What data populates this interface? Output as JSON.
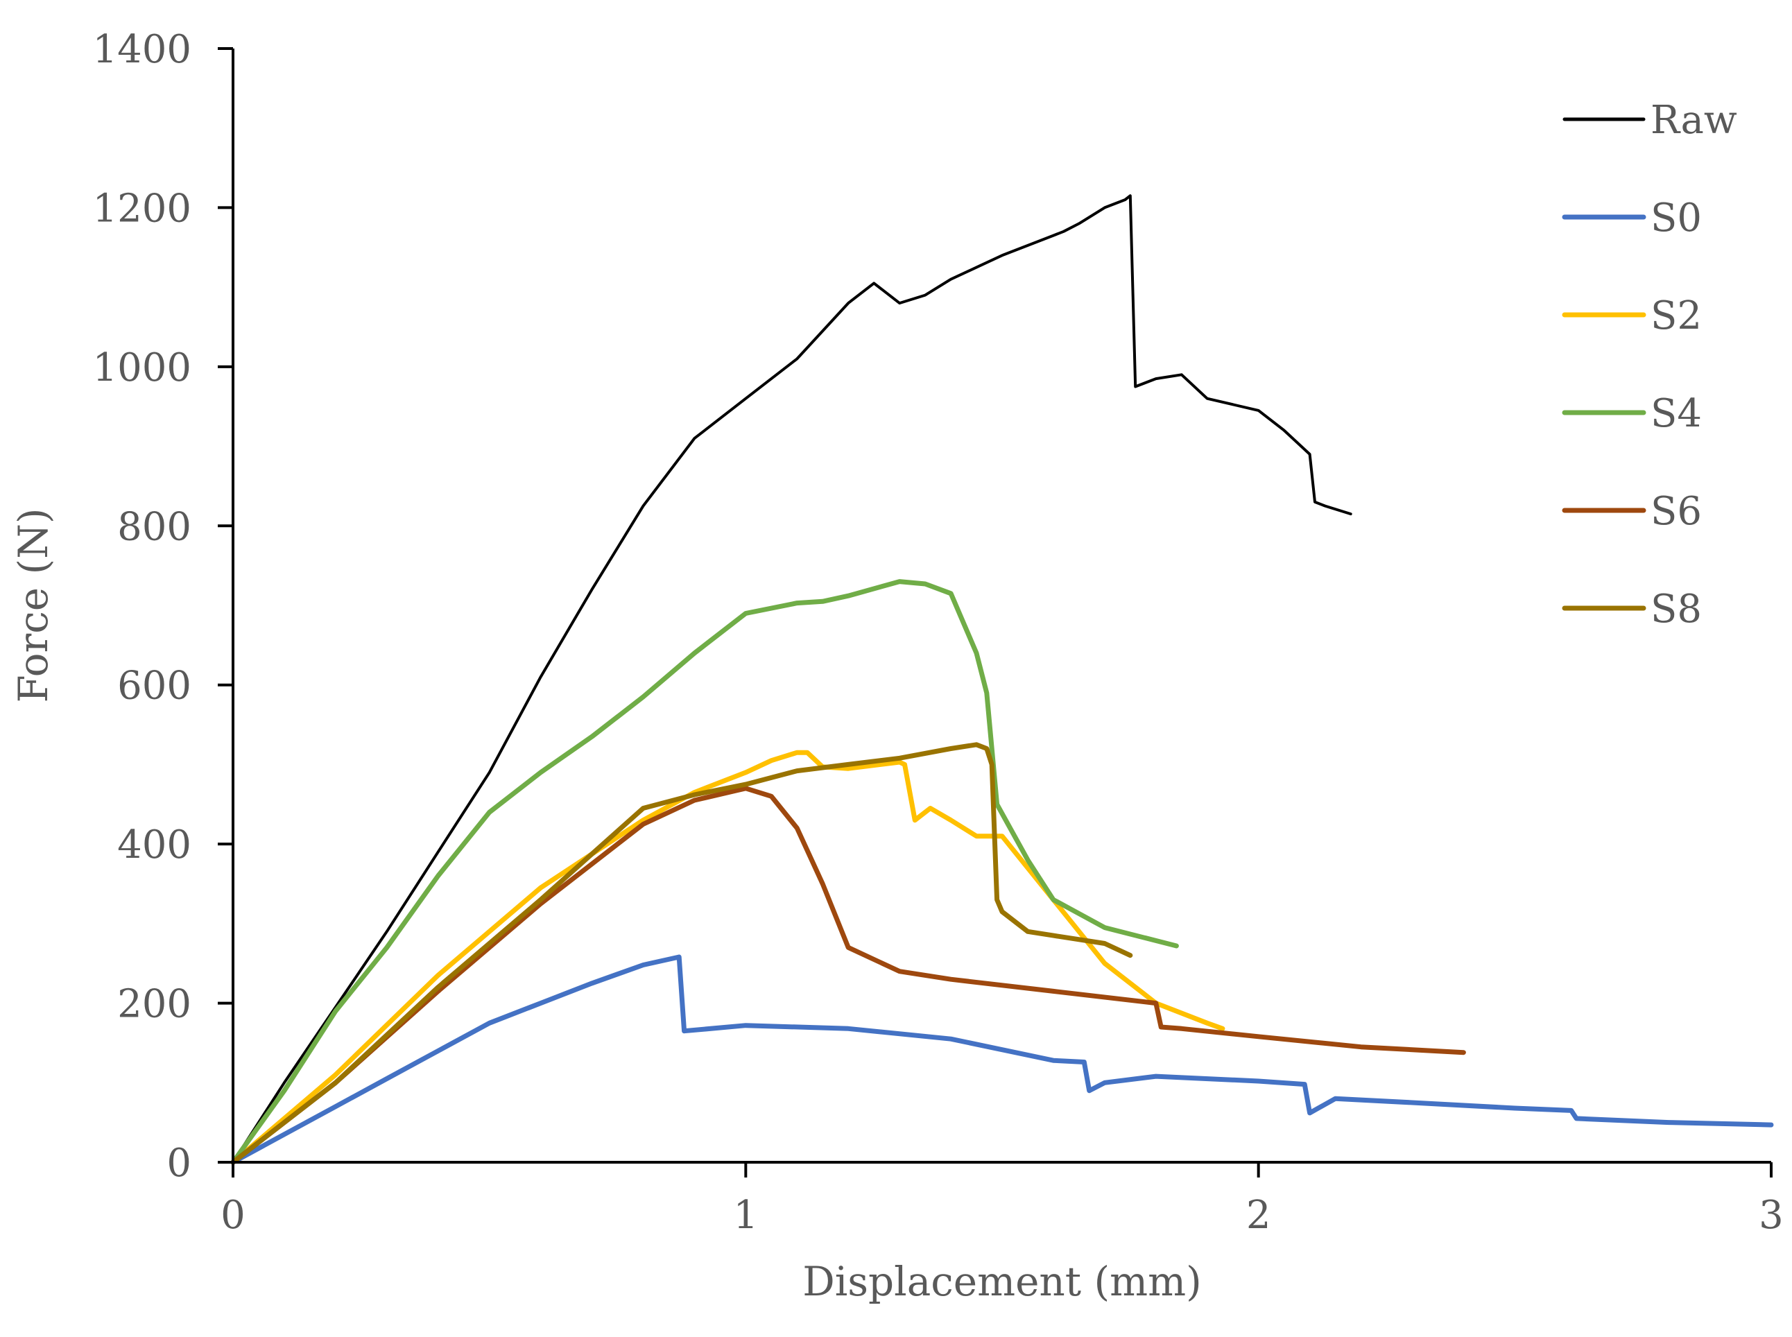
{
  "chart_data": {
    "type": "line",
    "title": "",
    "xlabel": "Displacement (mm)",
    "ylabel": "Force (N)",
    "xlim": [
      0,
      3
    ],
    "ylim": [
      0,
      1400
    ],
    "xticks": [
      "0",
      "1",
      "2",
      "3"
    ],
    "yticks": [
      "0",
      "200",
      "400",
      "600",
      "800",
      "1000",
      "1200",
      "1400"
    ],
    "grid": false,
    "legend_position": "right",
    "series": [
      {
        "name": "Raw",
        "color": "#000000",
        "x": [
          0,
          0.1,
          0.2,
          0.3,
          0.4,
          0.5,
          0.6,
          0.7,
          0.8,
          0.9,
          1.0,
          1.1,
          1.2,
          1.25,
          1.3,
          1.35,
          1.4,
          1.5,
          1.6,
          1.62,
          1.65,
          1.7,
          1.74,
          1.75,
          1.76,
          1.8,
          1.85,
          1.9,
          2.0,
          2.05,
          2.1,
          2.11,
          2.13,
          2.18
        ],
        "y": [
          0,
          100,
          195,
          290,
          390,
          490,
          610,
          720,
          825,
          910,
          960,
          1010,
          1080,
          1105,
          1080,
          1090,
          1110,
          1140,
          1165,
          1170,
          1180,
          1200,
          1210,
          1215,
          975,
          985,
          990,
          960,
          945,
          920,
          890,
          830,
          825,
          815
        ]
      },
      {
        "name": "S0",
        "color": "#4472C4",
        "x": [
          0,
          0.1,
          0.2,
          0.3,
          0.4,
          0.5,
          0.6,
          0.7,
          0.8,
          0.87,
          0.88,
          1.0,
          1.2,
          1.4,
          1.6,
          1.66,
          1.67,
          1.7,
          1.8,
          2.0,
          2.09,
          2.1,
          2.15,
          2.3,
          2.5,
          2.61,
          2.62,
          2.8,
          3.0
        ],
        "y": [
          0,
          35,
          70,
          105,
          140,
          175,
          200,
          225,
          248,
          258,
          165,
          172,
          168,
          155,
          128,
          126,
          90,
          100,
          108,
          102,
          98,
          62,
          80,
          75,
          68,
          65,
          55,
          50,
          47
        ]
      },
      {
        "name": "S2",
        "color": "#FFC000",
        "x": [
          0,
          0.2,
          0.4,
          0.6,
          0.8,
          0.9,
          1.0,
          1.05,
          1.1,
          1.12,
          1.15,
          1.2,
          1.3,
          1.31,
          1.33,
          1.36,
          1.4,
          1.45,
          1.5,
          1.6,
          1.7,
          1.8,
          1.9,
          1.93
        ],
        "y": [
          0,
          110,
          235,
          345,
          430,
          465,
          490,
          505,
          515,
          515,
          497,
          495,
          503,
          500,
          430,
          445,
          430,
          410,
          410,
          330,
          250,
          200,
          175,
          168
        ]
      },
      {
        "name": "S4",
        "color": "#70AD47",
        "x": [
          0,
          0.1,
          0.2,
          0.3,
          0.4,
          0.5,
          0.6,
          0.7,
          0.8,
          0.9,
          1.0,
          1.1,
          1.15,
          1.2,
          1.3,
          1.35,
          1.4,
          1.45,
          1.47,
          1.49,
          1.55,
          1.6,
          1.7,
          1.84
        ],
        "y": [
          0,
          90,
          190,
          270,
          360,
          440,
          490,
          535,
          585,
          640,
          690,
          703,
          705,
          712,
          730,
          727,
          715,
          640,
          590,
          450,
          380,
          330,
          295,
          272
        ]
      },
      {
        "name": "S6",
        "color": "#9E480E",
        "x": [
          0,
          0.2,
          0.4,
          0.6,
          0.8,
          0.9,
          1.0,
          1.05,
          1.1,
          1.15,
          1.2,
          1.3,
          1.4,
          1.6,
          1.8,
          1.81,
          1.85,
          2.0,
          2.2,
          2.4
        ],
        "y": [
          0,
          100,
          215,
          325,
          425,
          455,
          470,
          460,
          420,
          350,
          270,
          240,
          230,
          215,
          200,
          170,
          168,
          158,
          145,
          138
        ]
      },
      {
        "name": "S8",
        "color": "#997300",
        "x": [
          0,
          0.2,
          0.4,
          0.6,
          0.8,
          0.9,
          1.0,
          1.1,
          1.2,
          1.3,
          1.4,
          1.45,
          1.47,
          1.48,
          1.49,
          1.5,
          1.55,
          1.6,
          1.7,
          1.75
        ],
        "y": [
          0,
          100,
          220,
          330,
          445,
          462,
          475,
          492,
          500,
          508,
          520,
          525,
          520,
          500,
          330,
          315,
          290,
          285,
          275,
          260
        ]
      }
    ]
  }
}
